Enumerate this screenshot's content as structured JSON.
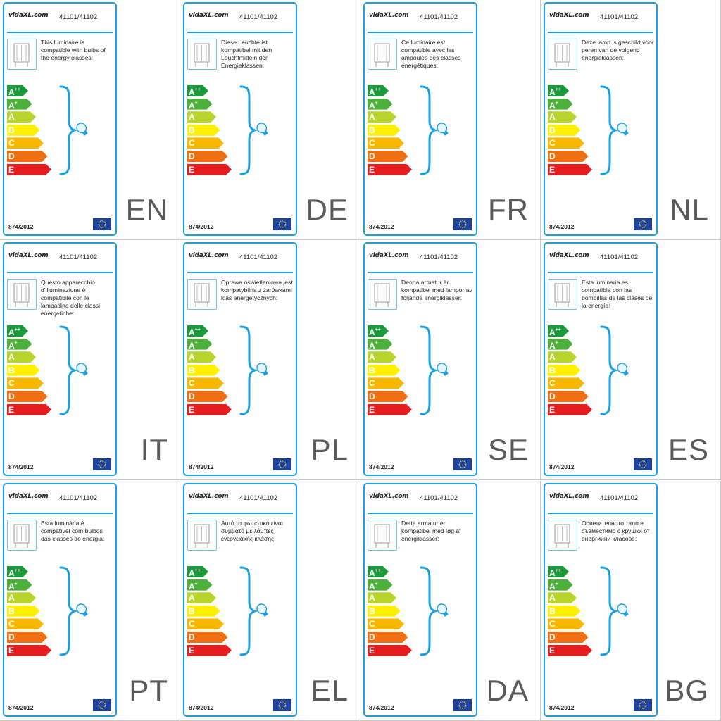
{
  "brand": "vidaXL.com",
  "product_code": "41101/41102",
  "regulation": "874/2012",
  "energy_classes": [
    {
      "letter": "A",
      "sup": "++",
      "color": "#1a9a3a"
    },
    {
      "letter": "A",
      "sup": "+",
      "color": "#4db03a"
    },
    {
      "letter": "A",
      "sup": "",
      "color": "#b9d42c"
    },
    {
      "letter": "B",
      "sup": "",
      "color": "#fff000"
    },
    {
      "letter": "C",
      "sup": "",
      "color": "#f9b800"
    },
    {
      "letter": "D",
      "sup": "",
      "color": "#ef6f12"
    },
    {
      "letter": "E",
      "sup": "",
      "color": "#e41d1f"
    }
  ],
  "colors": {
    "accent": "#1aa0df",
    "eu_flag": "#1f44a0",
    "eu_stars": "#ffdd00"
  },
  "icons": {
    "lamp": "floor-lamp-icon",
    "bulb": "light-bulb-icon",
    "flag": "eu-flag-icon"
  },
  "labels": [
    {
      "lang": "EN",
      "text": "This luminaire is compatible with bulbs of the energy classes:"
    },
    {
      "lang": "DE",
      "text": "Diese Leuchte ist kompatibel mit den Leuchtmitteln der Energieklassen:"
    },
    {
      "lang": "FR",
      "text": "Ce luminaire est compatible avec les ampoules des classes énergétiques:"
    },
    {
      "lang": "NL",
      "text": "Deze lamp is geschikt voor peren van de volgend energieklassen:"
    },
    {
      "lang": "IT",
      "text": "Questo apparecchio d'illuminazione è compatibile con le lampadine delle classi energetiche:"
    },
    {
      "lang": "PL",
      "text": "Oprawa oświetleniowa jest kompatybilna z żarówkami klas energetycznych:"
    },
    {
      "lang": "SE",
      "text": "Denna armatur är kompatibel med lampor av följande energiklasser:"
    },
    {
      "lang": "ES",
      "text": "Esta luminaria es compatible con las bombillas de las clases de la energía:"
    },
    {
      "lang": "PT",
      "text": "Esta luminária é compatível com bulbos das classes de energia:"
    },
    {
      "lang": "EL",
      "text": "Αυτό το φωτιστικό είναι συμβατό με λάμπες ενεργειακής κλάσης:"
    },
    {
      "lang": "DA",
      "text": "Dette armatur er kompatibel med løg af energiklasser:"
    },
    {
      "lang": "BG",
      "text": "Осветителното тяло е съвместимо с крушки от енергийни класове:"
    }
  ]
}
